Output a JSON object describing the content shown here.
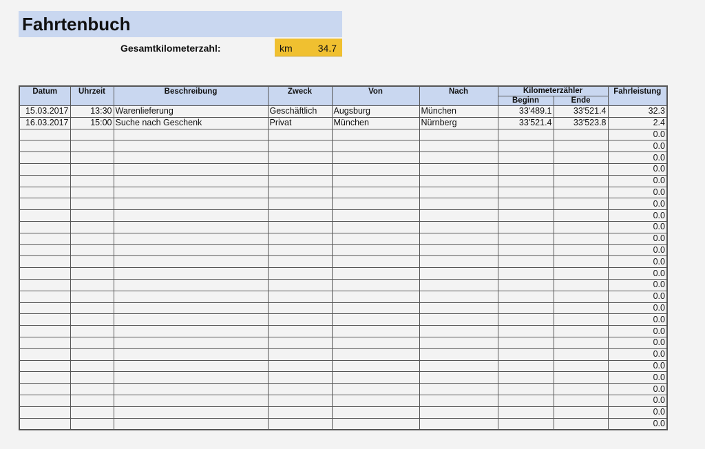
{
  "title": "Fahrtenbuch",
  "total": {
    "label": "Gesamtkilometerzahl:",
    "unit": "km",
    "value": "34.7"
  },
  "colors": {
    "header_bg": "#c9d7f0",
    "total_bg": "#f0c030"
  },
  "table": {
    "headers": {
      "datum": "Datum",
      "uhrzeit": "Uhrzeit",
      "beschreibung": "Beschreibung",
      "zweck": "Zweck",
      "von": "Von",
      "nach": "Nach",
      "kilometerzaehler": "Kilometerzähler",
      "beginn": "Beginn",
      "ende": "Ende",
      "fahrleistung": "Fahrleistung"
    },
    "rows": [
      [
        "15.03.2017",
        "13:30",
        "Warenlieferung",
        "Geschäftlich",
        "Augsburg",
        "München",
        "33'489.1",
        "33'521.4",
        "32.3"
      ],
      [
        "16.03.2017",
        "15:00",
        "Suche nach Geschenk",
        "Privat",
        "München",
        "Nürnberg",
        "33'521.4",
        "33'523.8",
        "2.4"
      ],
      [
        "",
        "",
        "",
        "",
        "",
        "",
        "",
        "",
        "0.0"
      ],
      [
        "",
        "",
        "",
        "",
        "",
        "",
        "",
        "",
        "0.0"
      ],
      [
        "",
        "",
        "",
        "",
        "",
        "",
        "",
        "",
        "0.0"
      ],
      [
        "",
        "",
        "",
        "",
        "",
        "",
        "",
        "",
        "0.0"
      ],
      [
        "",
        "",
        "",
        "",
        "",
        "",
        "",
        "",
        "0.0"
      ],
      [
        "",
        "",
        "",
        "",
        "",
        "",
        "",
        "",
        "0.0"
      ],
      [
        "",
        "",
        "",
        "",
        "",
        "",
        "",
        "",
        "0.0"
      ],
      [
        "",
        "",
        "",
        "",
        "",
        "",
        "",
        "",
        "0.0"
      ],
      [
        "",
        "",
        "",
        "",
        "",
        "",
        "",
        "",
        "0.0"
      ],
      [
        "",
        "",
        "",
        "",
        "",
        "",
        "",
        "",
        "0.0"
      ],
      [
        "",
        "",
        "",
        "",
        "",
        "",
        "",
        "",
        "0.0"
      ],
      [
        "",
        "",
        "",
        "",
        "",
        "",
        "",
        "",
        "0.0"
      ],
      [
        "",
        "",
        "",
        "",
        "",
        "",
        "",
        "",
        "0.0"
      ],
      [
        "",
        "",
        "",
        "",
        "",
        "",
        "",
        "",
        "0.0"
      ],
      [
        "",
        "",
        "",
        "",
        "",
        "",
        "",
        "",
        "0.0"
      ],
      [
        "",
        "",
        "",
        "",
        "",
        "",
        "",
        "",
        "0.0"
      ],
      [
        "",
        "",
        "",
        "",
        "",
        "",
        "",
        "",
        "0.0"
      ],
      [
        "",
        "",
        "",
        "",
        "",
        "",
        "",
        "",
        "0.0"
      ],
      [
        "",
        "",
        "",
        "",
        "",
        "",
        "",
        "",
        "0.0"
      ],
      [
        "",
        "",
        "",
        "",
        "",
        "",
        "",
        "",
        "0.0"
      ],
      [
        "",
        "",
        "",
        "",
        "",
        "",
        "",
        "",
        "0.0"
      ],
      [
        "",
        "",
        "",
        "",
        "",
        "",
        "",
        "",
        "0.0"
      ],
      [
        "",
        "",
        "",
        "",
        "",
        "",
        "",
        "",
        "0.0"
      ],
      [
        "",
        "",
        "",
        "",
        "",
        "",
        "",
        "",
        "0.0"
      ],
      [
        "",
        "",
        "",
        "",
        "",
        "",
        "",
        "",
        "0.0"
      ],
      [
        "",
        "",
        "",
        "",
        "",
        "",
        "",
        "",
        "0.0"
      ]
    ]
  }
}
